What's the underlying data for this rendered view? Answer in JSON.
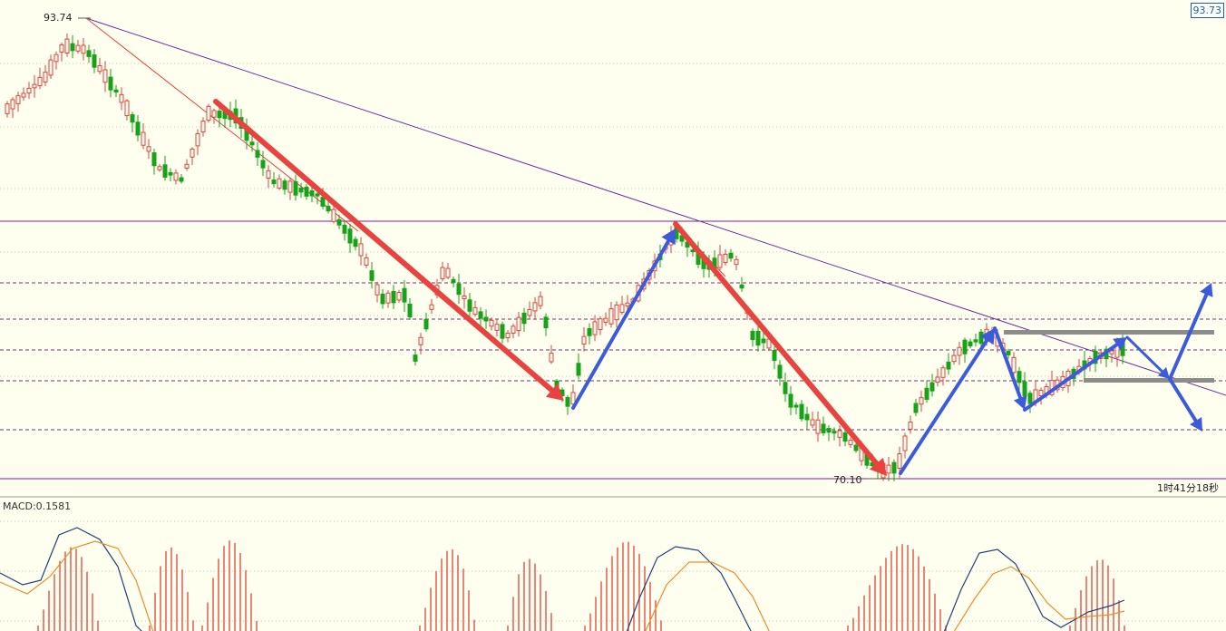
{
  "chart_data": [
    {
      "type": "candlestick",
      "title": "",
      "grid": true,
      "last_price_label": "93.73",
      "high_label": "93.74",
      "low_label": "70.10",
      "countdown_label": "1时41分18秒",
      "colors": {
        "background": "#fffff0",
        "up_candle": "#e0433c",
        "down_candle": "#17a317",
        "red_arrow": "#e8433f",
        "blue_arrow": "#3b5bdb",
        "trendline": "#7030a0",
        "level_line": "#8b1a8b",
        "dashed_level": "#7a2b7a",
        "gray_zone": "#8c8c8c"
      }
    },
    {
      "type": "macd",
      "label": "MACD:0.1581",
      "value": 0.1581,
      "colors": {
        "histogram": "#e0433c",
        "dif": "#1f3f7a",
        "dea": "#f08c28"
      }
    }
  ]
}
